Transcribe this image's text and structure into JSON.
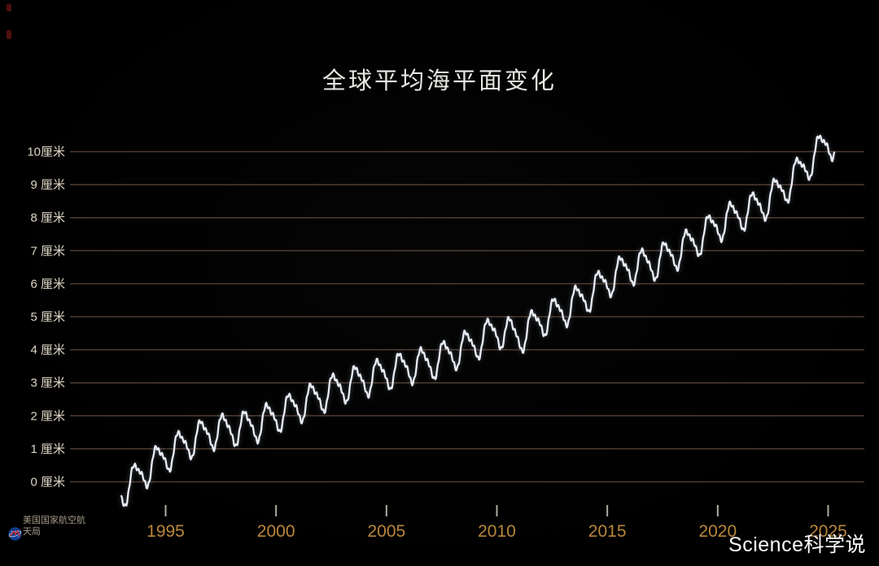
{
  "title": "全球平均海平面变化",
  "watermark": "Science科学说",
  "source": {
    "name": "美国国家航空航天局",
    "logo": "nasa-meatball"
  },
  "colors": {
    "background": "#000000",
    "line": "#e9edf5",
    "gridline": "#4e3d33",
    "x_label": "#b8863b",
    "y_label": "#ded6c4",
    "title": "#e9e7e3",
    "watermark": "#fafafa",
    "source_text": "#a39a85"
  },
  "chart_data": {
    "type": "line",
    "title": "全球平均海平面变化",
    "unit": "厘米",
    "xlabel": "",
    "ylabel": "厘米",
    "grid": "horizontal-only",
    "legend": "none",
    "x_range": [
      1993,
      2025.3
    ],
    "y_range_cm": [
      -1.2,
      11
    ],
    "y_ticks": [
      {
        "value": 10,
        "label": "10厘米"
      },
      {
        "value": 9,
        "label": "9 厘米"
      },
      {
        "value": 8,
        "label": "8 厘米"
      },
      {
        "value": 7,
        "label": "7 厘米"
      },
      {
        "value": 6,
        "label": "6 厘米"
      },
      {
        "value": 5,
        "label": "5 厘米"
      },
      {
        "value": 4,
        "label": "4 厘米"
      },
      {
        "value": 3,
        "label": "3 厘米"
      },
      {
        "value": 2,
        "label": "2 厘米"
      },
      {
        "value": 1,
        "label": "1 厘米"
      },
      {
        "value": 0,
        "label": "0 厘米"
      }
    ],
    "x_ticks": [
      1995,
      2000,
      2005,
      2010,
      2015,
      2020,
      2025
    ],
    "series": [
      {
        "name": "全球平均海平面",
        "years": [
          1993,
          1994,
          1995,
          1996,
          1997,
          1998,
          1999,
          2000,
          2001,
          2002,
          2003,
          2004,
          2005,
          2006,
          2007,
          2008,
          2009,
          2010,
          2011,
          2012,
          2013,
          2014,
          2015,
          2016,
          2017,
          2018,
          2019,
          2020,
          2021,
          2022,
          2023,
          2024,
          2025
        ],
        "annual_mean_cm": [
          -0.3,
          0.3,
          0.8,
          1.2,
          1.5,
          1.6,
          1.7,
          2.0,
          2.3,
          2.6,
          2.9,
          3.1,
          3.3,
          3.5,
          3.6,
          3.9,
          4.2,
          4.6,
          4.4,
          4.9,
          5.2,
          5.6,
          6.1,
          6.5,
          6.6,
          6.9,
          7.3,
          7.8,
          8.1,
          8.4,
          8.9,
          9.6,
          10.3
        ],
        "seasonal_amplitude_cm": 0.45,
        "secondary_wiggle_cm": 0.13
      }
    ]
  }
}
